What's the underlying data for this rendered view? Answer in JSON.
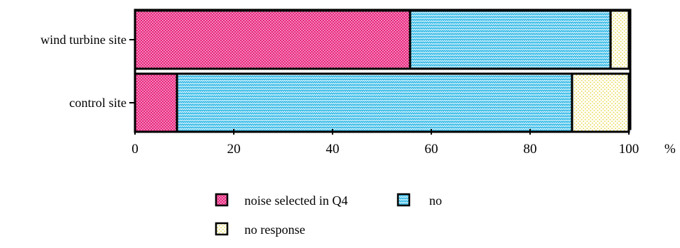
{
  "chart_data": {
    "type": "bar",
    "orientation": "horizontal",
    "stacked": true,
    "categories": [
      "wind turbine site",
      "control site"
    ],
    "series": [
      {
        "name": "noise selected in Q4",
        "values": [
          55.7,
          8.5
        ],
        "color": "#e8247e",
        "pattern": "dots"
      },
      {
        "name": "no",
        "values": [
          40.6,
          80.0
        ],
        "color": "#3cbde8",
        "pattern": "zigzag"
      },
      {
        "name": "no response",
        "values": [
          3.7,
          11.5
        ],
        "color": "#fff2a0",
        "pattern": "sparse-dots"
      }
    ],
    "x_ticks": [
      "0",
      "20",
      "40",
      "60",
      "80",
      "100"
    ],
    "xlim": [
      0,
      100
    ],
    "x_unit_label": "%",
    "grid": false,
    "legend_placement": "bottom"
  }
}
